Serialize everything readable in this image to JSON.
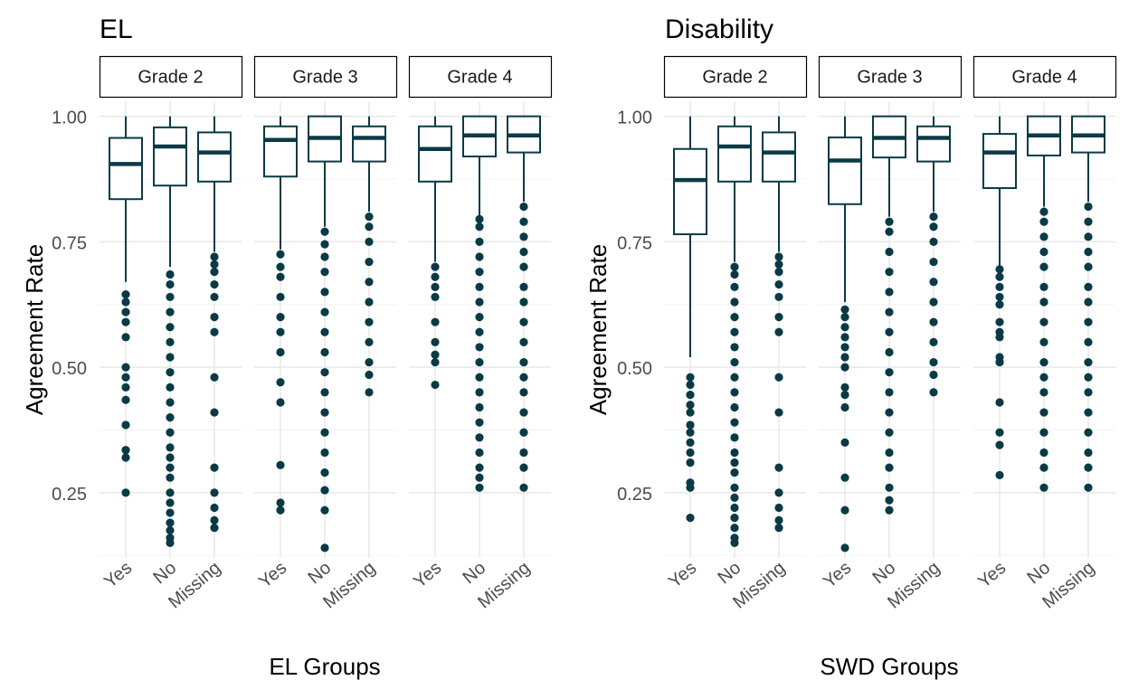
{
  "figure": {
    "panels": [
      {
        "title": "EL",
        "xlabel": "EL Groups",
        "ylabel": "Agreement Rate"
      },
      {
        "title": "Disability",
        "xlabel": "SWD Groups",
        "ylabel": "Agreement Rate"
      }
    ]
  },
  "chart_data": [
    {
      "type": "boxplot",
      "title": "EL",
      "xlabel": "EL Groups",
      "ylabel": "Agreement Rate",
      "ylim": [
        0.12,
        1.03
      ],
      "yticks": [
        0.25,
        0.5,
        0.75,
        1.0
      ],
      "ytick_labels": [
        "0.25",
        "0.50",
        "0.75",
        "1.00"
      ],
      "grid": true,
      "color": "#0a3a46",
      "facets": [
        {
          "label": "Grade 2",
          "categories": [
            "Yes",
            "No",
            "Missing"
          ],
          "boxes": [
            {
              "whisker_low": 0.67,
              "q1": 0.835,
              "median": 0.905,
              "q3": 0.957,
              "whisker_high": 1.0,
              "outliers": [
                0.25,
                0.32,
                0.335,
                0.385,
                0.435,
                0.46,
                0.48,
                0.5,
                0.56,
                0.59,
                0.61,
                0.63,
                0.645
              ]
            },
            {
              "whisker_low": 0.7,
              "q1": 0.862,
              "median": 0.94,
              "q3": 0.978,
              "whisker_high": 1.0,
              "outliers": [
                0.15,
                0.16,
                0.175,
                0.19,
                0.21,
                0.23,
                0.25,
                0.28,
                0.3,
                0.32,
                0.34,
                0.37,
                0.4,
                0.43,
                0.46,
                0.49,
                0.52,
                0.55,
                0.58,
                0.61,
                0.64,
                0.665,
                0.685
              ]
            },
            {
              "whisker_low": 0.73,
              "q1": 0.87,
              "median": 0.928,
              "q3": 0.968,
              "whisker_high": 1.0,
              "outliers": [
                0.18,
                0.195,
                0.22,
                0.25,
                0.3,
                0.41,
                0.48,
                0.57,
                0.6,
                0.64,
                0.665,
                0.69,
                0.705,
                0.72
              ]
            }
          ]
        },
        {
          "label": "Grade 3",
          "categories": [
            "Yes",
            "No",
            "Missing"
          ],
          "boxes": [
            {
              "whisker_low": 0.735,
              "q1": 0.88,
              "median": 0.953,
              "q3": 0.98,
              "whisker_high": 1.0,
              "outliers": [
                0.215,
                0.23,
                0.305,
                0.43,
                0.47,
                0.53,
                0.57,
                0.6,
                0.64,
                0.68,
                0.7,
                0.725
              ]
            },
            {
              "whisker_low": 0.78,
              "q1": 0.91,
              "median": 0.957,
              "q3": 1.0,
              "whisker_high": 1.0,
              "outliers": [
                0.14,
                0.215,
                0.255,
                0.29,
                0.33,
                0.37,
                0.41,
                0.45,
                0.49,
                0.53,
                0.57,
                0.61,
                0.65,
                0.69,
                0.72,
                0.745,
                0.77
              ]
            },
            {
              "whisker_low": 0.81,
              "q1": 0.91,
              "median": 0.957,
              "q3": 0.98,
              "whisker_high": 1.0,
              "outliers": [
                0.45,
                0.485,
                0.51,
                0.55,
                0.59,
                0.63,
                0.67,
                0.71,
                0.75,
                0.78,
                0.8
              ]
            }
          ]
        },
        {
          "label": "Grade 4",
          "categories": [
            "Yes",
            "No",
            "Missing"
          ],
          "boxes": [
            {
              "whisker_low": 0.71,
              "q1": 0.87,
              "median": 0.935,
              "q3": 0.98,
              "whisker_high": 1.0,
              "outliers": [
                0.465,
                0.51,
                0.525,
                0.55,
                0.59,
                0.64,
                0.66,
                0.68,
                0.7
              ]
            },
            {
              "whisker_low": 0.8,
              "q1": 0.92,
              "median": 0.962,
              "q3": 1.0,
              "whisker_high": 1.0,
              "outliers": [
                0.26,
                0.28,
                0.3,
                0.33,
                0.36,
                0.39,
                0.42,
                0.45,
                0.48,
                0.51,
                0.54,
                0.57,
                0.6,
                0.63,
                0.66,
                0.69,
                0.72,
                0.75,
                0.78,
                0.795
              ]
            },
            {
              "whisker_low": 0.83,
              "q1": 0.928,
              "median": 0.962,
              "q3": 1.0,
              "whisker_high": 1.0,
              "outliers": [
                0.26,
                0.3,
                0.33,
                0.37,
                0.41,
                0.45,
                0.48,
                0.51,
                0.55,
                0.59,
                0.63,
                0.66,
                0.7,
                0.73,
                0.76,
                0.79,
                0.82
              ]
            }
          ]
        }
      ]
    },
    {
      "type": "boxplot",
      "title": "Disability",
      "xlabel": "SWD Groups",
      "ylabel": "Agreement Rate",
      "ylim": [
        0.12,
        1.03
      ],
      "yticks": [
        0.25,
        0.5,
        0.75,
        1.0
      ],
      "ytick_labels": [
        "0.25",
        "0.50",
        "0.75",
        "1.00"
      ],
      "grid": true,
      "color": "#0a3a46",
      "facets": [
        {
          "label": "Grade 2",
          "categories": [
            "Yes",
            "No",
            "Missing"
          ],
          "boxes": [
            {
              "whisker_low": 0.52,
              "q1": 0.765,
              "median": 0.873,
              "q3": 0.935,
              "whisker_high": 1.0,
              "outliers": [
                0.2,
                0.26,
                0.27,
                0.31,
                0.33,
                0.35,
                0.37,
                0.385,
                0.41,
                0.425,
                0.445,
                0.465,
                0.48
              ]
            },
            {
              "whisker_low": 0.71,
              "q1": 0.87,
              "median": 0.94,
              "q3": 0.98,
              "whisker_high": 1.0,
              "outliers": [
                0.15,
                0.16,
                0.18,
                0.2,
                0.22,
                0.24,
                0.26,
                0.29,
                0.31,
                0.33,
                0.36,
                0.39,
                0.42,
                0.45,
                0.48,
                0.51,
                0.54,
                0.57,
                0.6,
                0.63,
                0.66,
                0.685,
                0.7
              ]
            },
            {
              "whisker_low": 0.73,
              "q1": 0.87,
              "median": 0.928,
              "q3": 0.968,
              "whisker_high": 1.0,
              "outliers": [
                0.18,
                0.195,
                0.22,
                0.25,
                0.3,
                0.41,
                0.48,
                0.57,
                0.6,
                0.64,
                0.665,
                0.69,
                0.705,
                0.72
              ]
            }
          ]
        },
        {
          "label": "Grade 3",
          "categories": [
            "Yes",
            "No",
            "Missing"
          ],
          "boxes": [
            {
              "whisker_low": 0.63,
              "q1": 0.825,
              "median": 0.912,
              "q3": 0.958,
              "whisker_high": 1.0,
              "outliers": [
                0.14,
                0.215,
                0.28,
                0.35,
                0.42,
                0.445,
                0.46,
                0.5,
                0.52,
                0.54,
                0.56,
                0.58,
                0.6,
                0.615
              ]
            },
            {
              "whisker_low": 0.8,
              "q1": 0.918,
              "median": 0.957,
              "q3": 1.0,
              "whisker_high": 1.0,
              "outliers": [
                0.215,
                0.235,
                0.26,
                0.3,
                0.33,
                0.37,
                0.41,
                0.45,
                0.49,
                0.53,
                0.57,
                0.61,
                0.65,
                0.69,
                0.73,
                0.77,
                0.79
              ]
            },
            {
              "whisker_low": 0.81,
              "q1": 0.91,
              "median": 0.957,
              "q3": 0.98,
              "whisker_high": 1.0,
              "outliers": [
                0.45,
                0.485,
                0.51,
                0.55,
                0.59,
                0.63,
                0.67,
                0.71,
                0.75,
                0.78,
                0.8
              ]
            }
          ]
        },
        {
          "label": "Grade 4",
          "categories": [
            "Yes",
            "No",
            "Missing"
          ],
          "boxes": [
            {
              "whisker_low": 0.7,
              "q1": 0.857,
              "median": 0.928,
              "q3": 0.965,
              "whisker_high": 1.0,
              "outliers": [
                0.285,
                0.345,
                0.37,
                0.43,
                0.51,
                0.52,
                0.56,
                0.57,
                0.59,
                0.625,
                0.64,
                0.66,
                0.68,
                0.695
              ]
            },
            {
              "whisker_low": 0.82,
              "q1": 0.922,
              "median": 0.962,
              "q3": 1.0,
              "whisker_high": 1.0,
              "outliers": [
                0.26,
                0.3,
                0.33,
                0.37,
                0.41,
                0.45,
                0.48,
                0.51,
                0.55,
                0.59,
                0.63,
                0.66,
                0.7,
                0.73,
                0.76,
                0.79,
                0.81
              ]
            },
            {
              "whisker_low": 0.83,
              "q1": 0.928,
              "median": 0.962,
              "q3": 1.0,
              "whisker_high": 1.0,
              "outliers": [
                0.26,
                0.3,
                0.33,
                0.37,
                0.41,
                0.45,
                0.48,
                0.51,
                0.55,
                0.59,
                0.63,
                0.66,
                0.7,
                0.73,
                0.76,
                0.79,
                0.82
              ]
            }
          ]
        }
      ]
    }
  ]
}
